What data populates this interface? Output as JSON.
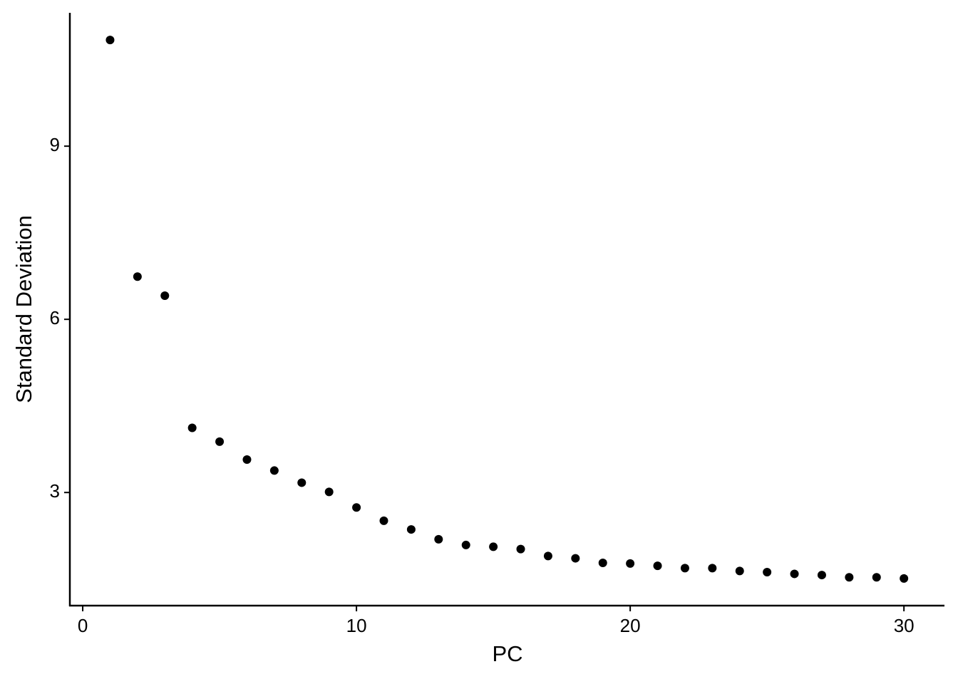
{
  "chart_data": {
    "type": "scatter",
    "xlabel": "PC",
    "ylabel": "Standard Deviation",
    "x": [
      1,
      2,
      3,
      4,
      5,
      6,
      7,
      8,
      9,
      10,
      11,
      12,
      13,
      14,
      15,
      16,
      17,
      18,
      19,
      20,
      21,
      22,
      23,
      24,
      25,
      26,
      27,
      28,
      29,
      30
    ],
    "values": [
      10.84,
      6.74,
      6.41,
      4.12,
      3.88,
      3.57,
      3.38,
      3.17,
      3.01,
      2.74,
      2.51,
      2.36,
      2.19,
      2.09,
      2.06,
      2.02,
      1.9,
      1.86,
      1.78,
      1.77,
      1.73,
      1.69,
      1.69,
      1.64,
      1.62,
      1.59,
      1.57,
      1.53,
      1.53,
      1.51
    ],
    "color": "#000000",
    "xlim": [
      -0.47,
      31.48
    ],
    "xticks": [
      0,
      10,
      20,
      30
    ],
    "ylim": [
      1.04,
      11.31
    ],
    "yticks": [
      3,
      6,
      9
    ],
    "grid": false
  }
}
